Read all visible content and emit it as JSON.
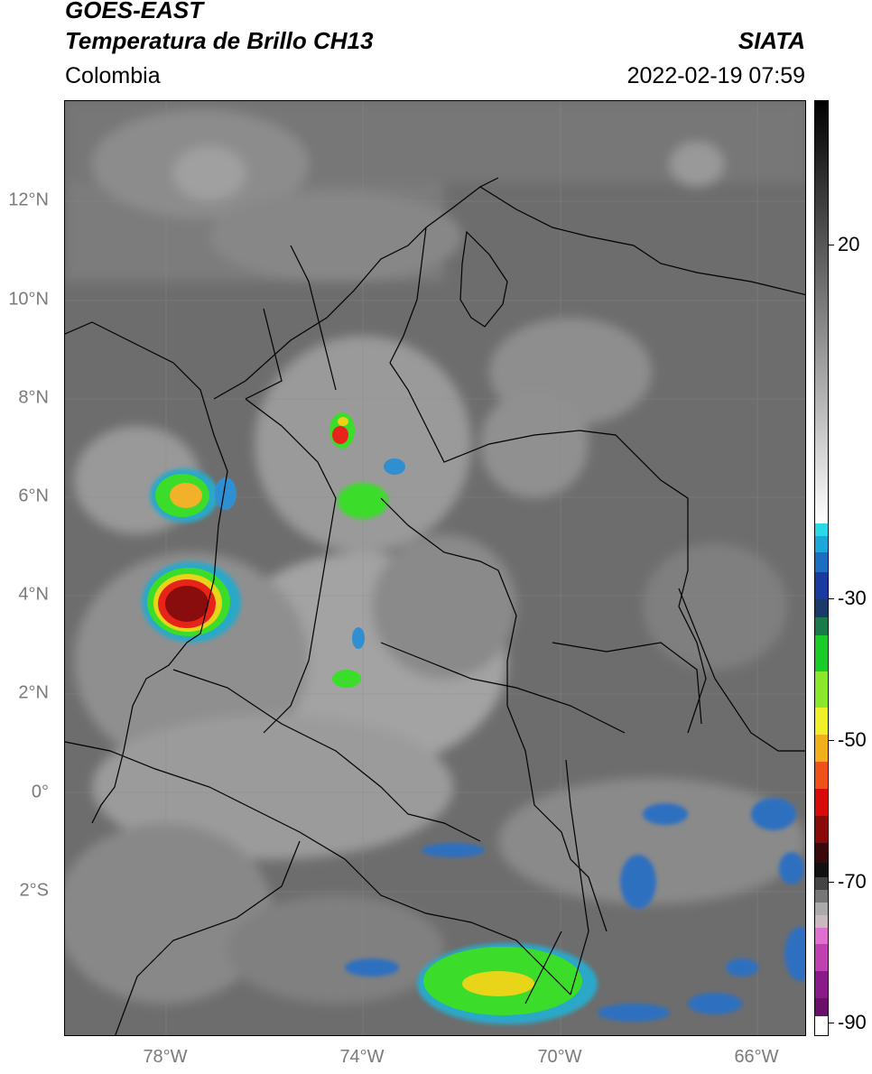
{
  "header": {
    "satellite": "GOES-EAST",
    "product": "Temperatura de Brillo CH13",
    "region": "Colombia",
    "institution": "SIATA",
    "timestamp": "2022-02-19 07:59"
  },
  "map": {
    "lat_labels": [
      "12°N",
      "10°N",
      "8°N",
      "6°N",
      "4°N",
      "2°N",
      "0°",
      "2°S"
    ],
    "lon_labels": [
      "78°W",
      "74°W",
      "70°W",
      "66°W"
    ]
  },
  "colorbar": {
    "labels": [
      "20",
      "-30",
      "-50",
      "-70",
      "-90"
    ]
  }
}
